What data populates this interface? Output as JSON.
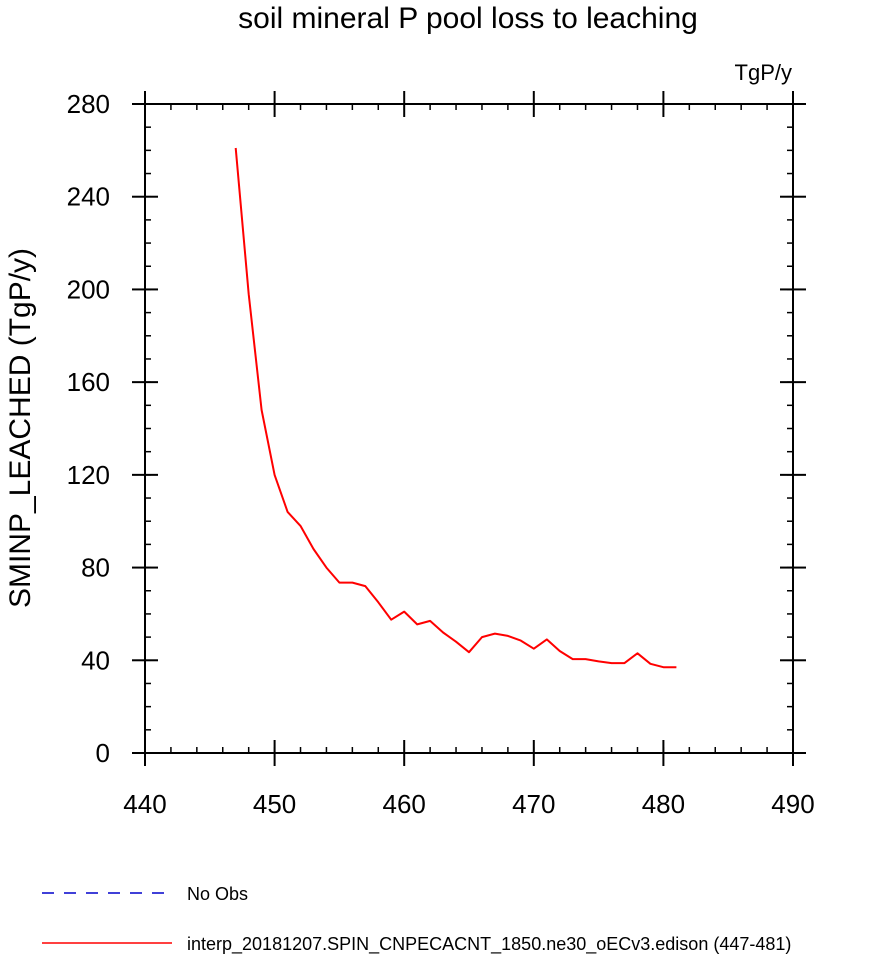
{
  "chart_data": {
    "type": "line",
    "title": "soil mineral P pool loss to leaching",
    "units_label": "TgP/y",
    "ylabel": "SMINP_LEACHED  (TgP/y)",
    "xlabel": "",
    "xlim": [
      440,
      490
    ],
    "ylim": [
      0,
      280
    ],
    "xticks": [
      440,
      450,
      460,
      470,
      480,
      490
    ],
    "yticks": [
      0,
      40,
      80,
      120,
      160,
      200,
      240,
      280
    ],
    "grid": false,
    "legend_position": "bottom-left",
    "series": [
      {
        "name": "No Obs",
        "color": "#0000cc",
        "dash": "dashed",
        "x": [],
        "y": []
      },
      {
        "name": "interp_20181207.SPIN_CNPECACNT_1850.ne30_oECv3.edison (447-481)",
        "color": "#ff0000",
        "dash": "solid",
        "x": [
          447,
          448,
          449,
          450,
          451,
          452,
          453,
          454,
          455,
          456,
          457,
          458,
          459,
          460,
          461,
          462,
          463,
          464,
          465,
          466,
          467,
          468,
          469,
          470,
          471,
          472,
          473,
          474,
          475,
          476,
          477,
          478,
          479,
          480,
          481
        ],
        "y": [
          261,
          198,
          148,
          120,
          104,
          98,
          88,
          80,
          73.5,
          73.5,
          72,
          65,
          57.5,
          61,
          55.5,
          57,
          52,
          48,
          43.5,
          50,
          51.5,
          50.5,
          48.5,
          45,
          49,
          44,
          40.5,
          40.5,
          39.5,
          38.8,
          38.8,
          43,
          38.5,
          37,
          37
        ]
      }
    ]
  }
}
